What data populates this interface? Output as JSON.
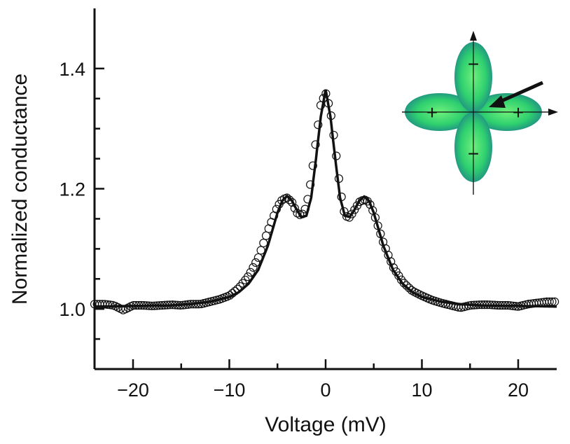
{
  "chart_data": {
    "type": "scatter",
    "xlabel": "Voltage (mV)",
    "ylabel": "Normalized conductance",
    "xlim": [
      -24,
      24
    ],
    "ylim": [
      0.9,
      1.5
    ],
    "xticks": [
      -20,
      -10,
      0,
      10,
      20
    ],
    "xtick_labels": [
      "−20",
      "−10",
      "0",
      "10",
      "20"
    ],
    "yticks": [
      1.0,
      1.2,
      1.4
    ],
    "ytick_labels": [
      "1.0",
      "1.2",
      "1.4"
    ],
    "grid": false,
    "series": [
      {
        "style": "open-circles",
        "x": [
          -24,
          -23,
          -22,
          -21,
          -20,
          -19,
          -18,
          -17,
          -16,
          -15,
          -14,
          -13,
          -12,
          -11,
          -10,
          -9,
          -8,
          -7,
          -6,
          -5,
          -4.5,
          -4,
          -3.5,
          -3,
          -2.5,
          -2,
          -1.5,
          -1,
          -0.5,
          0,
          0.5,
          1,
          1.5,
          2,
          2.5,
          3,
          3.5,
          4,
          4.5,
          5,
          6,
          7,
          8,
          9,
          10,
          11,
          12,
          13,
          14,
          15,
          16,
          17,
          18,
          19,
          20,
          21,
          22,
          23,
          24
        ],
        "y": [
          1.008,
          1.008,
          1.006,
          0.998,
          1.006,
          1.006,
          1.005,
          1.006,
          1.007,
          1.006,
          1.008,
          1.008,
          1.012,
          1.016,
          1.022,
          1.035,
          1.055,
          1.085,
          1.13,
          1.17,
          1.182,
          1.185,
          1.178,
          1.16,
          1.155,
          1.17,
          1.215,
          1.28,
          1.34,
          1.36,
          1.33,
          1.27,
          1.2,
          1.155,
          1.152,
          1.165,
          1.178,
          1.182,
          1.178,
          1.16,
          1.11,
          1.07,
          1.045,
          1.03,
          1.022,
          1.015,
          1.01,
          1.006,
          1.002,
          1.006,
          1.007,
          1.007,
          1.006,
          1.006,
          1.004,
          1.008,
          1.01,
          1.012,
          1.012
        ]
      },
      {
        "style": "solid-line",
        "x": [
          -24,
          -20,
          -16,
          -14,
          -12,
          -10,
          -9,
          -8,
          -7,
          -6,
          -5,
          -4.5,
          -4,
          -3.5,
          -3,
          -2.5,
          -2,
          -1.5,
          -1,
          -0.5,
          0,
          0.5,
          1,
          1.5,
          2,
          2.5,
          3,
          3.5,
          4,
          4.5,
          5,
          6,
          7,
          8,
          9,
          10,
          12,
          14,
          16,
          20,
          24
        ],
        "y": [
          1.004,
          1.005,
          1.006,
          1.008,
          1.012,
          1.02,
          1.028,
          1.042,
          1.065,
          1.105,
          1.16,
          1.18,
          1.188,
          1.18,
          1.165,
          1.153,
          1.155,
          1.185,
          1.25,
          1.32,
          1.365,
          1.32,
          1.25,
          1.185,
          1.155,
          1.153,
          1.165,
          1.18,
          1.187,
          1.18,
          1.16,
          1.105,
          1.065,
          1.042,
          1.028,
          1.02,
          1.012,
          1.008,
          1.006,
          1.005,
          1.004
        ]
      }
    ],
    "inset": {
      "type": "diagram",
      "description_marks": [
        "+",
        "+",
        "−",
        "−"
      ],
      "lobe_color": "#2fd070",
      "lobe_shade": "#1a7a8a",
      "arrow": true
    }
  }
}
